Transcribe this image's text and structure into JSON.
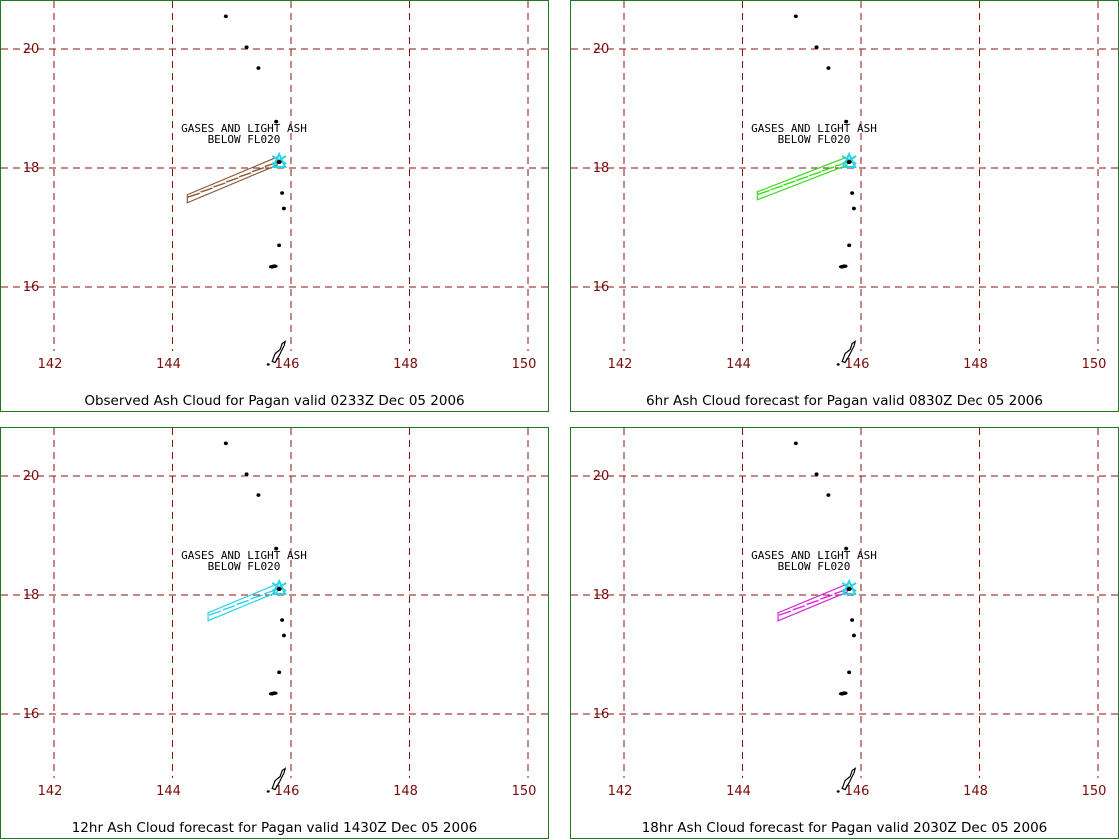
{
  "grid": {
    "x_ticks": [
      "142",
      "144",
      "146",
      "148",
      "150"
    ],
    "y_ticks": [
      "20",
      "18",
      "16"
    ],
    "line_color": "#8b1010",
    "label_color": "#7a0a0a",
    "border_color": "#1f7a1f"
  },
  "annotation": {
    "line1": "GASES AND LIGHT ASH",
    "line2": "BELOW FL020"
  },
  "volcano": {
    "name": "Pagan",
    "marker_color": "#29d3e6",
    "lon": 145.8,
    "lat": 18.1
  },
  "panels": [
    {
      "caption": "Observed Ash Cloud for Pagan valid 0233Z Dec 05 2006",
      "cloud_color": "#8a5a3a",
      "cloud_west_lon": 144.25,
      "cloud_west_lat": 17.5
    },
    {
      "caption": "6hr Ash Cloud forecast for Pagan valid 0830Z Dec 05 2006",
      "cloud_color": "#3ddc1e",
      "cloud_west_lon": 144.25,
      "cloud_west_lat": 17.55
    },
    {
      "caption": "12hr Ash Cloud forecast for Pagan valid 1430Z Dec 05 2006",
      "cloud_color": "#29d3e6",
      "cloud_west_lon": 144.6,
      "cloud_west_lat": 17.65
    },
    {
      "caption": "18hr Ash Cloud forecast for Pagan valid 2030Z Dec 05 2006",
      "cloud_color": "#d62ad6",
      "cloud_west_lon": 144.6,
      "cloud_west_lat": 17.65
    }
  ]
}
